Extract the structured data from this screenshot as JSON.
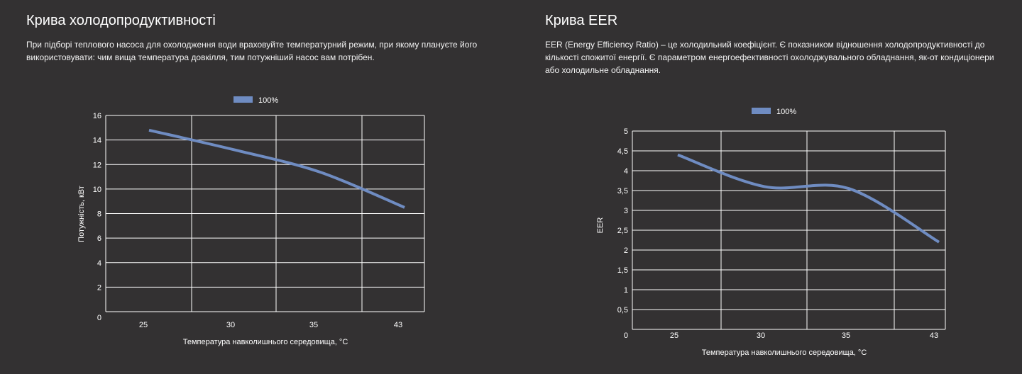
{
  "sections": [
    {
      "title": "Крива холодопродуктивності",
      "description": "При підборі теплового насоса для охолодження води враховуйте температурний режим, при якому плануєте його використовувати: чим вища температура довкілля, тим потужніший насос вам потрібен."
    },
    {
      "title": "Крива EER",
      "description": "EER (Energy Efficiency Ratio) – це холодильний коефіцієнт. Є показником відношення холодопродуктивності до кількості спожитої енергії. Є параметром енергоефективності охолоджувального обладнання, як-от кондиціонери або холодильне обладнання."
    }
  ],
  "chart_data": [
    {
      "type": "line",
      "xlabel": "Температура навколишнього середовища, °C",
      "ylabel": "Потужність, кВт",
      "categories": [
        "25",
        "30",
        "35",
        "43"
      ],
      "y_ticks": [
        "0",
        "2",
        "4",
        "6",
        "8",
        "10",
        "12",
        "14",
        "16"
      ],
      "ylim": [
        0,
        16
      ],
      "grid": true,
      "legend_position": "top",
      "series": [
        {
          "name": "100%",
          "color": "#6f8cc2",
          "x": [
            "25",
            "30",
            "35",
            "43"
          ],
          "values": [
            14.8,
            13.2,
            11.4,
            8.5
          ]
        }
      ]
    },
    {
      "type": "line",
      "xlabel": "Температура навколишнього середовища, °C",
      "ylabel": "EER",
      "categories": [
        "25",
        "30",
        "35",
        "43"
      ],
      "y_ticks": [
        "0",
        "0,5",
        "1",
        "1,5",
        "2",
        "2,5",
        "3",
        "3,5",
        "4",
        "4,5",
        "5"
      ],
      "ylim": [
        0,
        5
      ],
      "grid": true,
      "legend_position": "top",
      "series": [
        {
          "name": "100%",
          "color": "#6f8cc2",
          "x": [
            "25",
            "30",
            "35",
            "43"
          ],
          "values": [
            4.4,
            3.6,
            3.55,
            2.2
          ]
        }
      ]
    }
  ]
}
